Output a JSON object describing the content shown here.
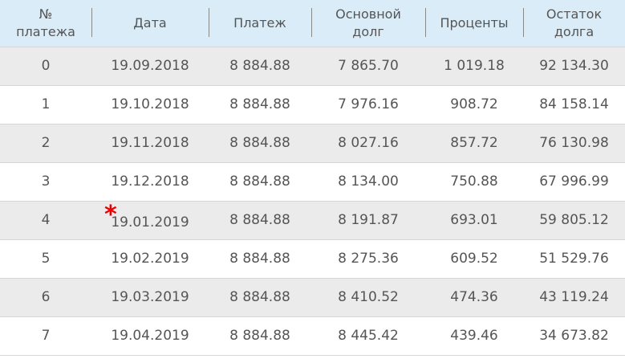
{
  "table": {
    "columns": [
      "№\nплатежа",
      "Дата",
      "Платеж",
      "Основной\nдолг",
      "Проценты",
      "Остаток\nдолга"
    ],
    "marker": {
      "symbol": "*",
      "color": "#ee0000",
      "row_index": 4
    },
    "rows": [
      [
        "0",
        "19.09.2018",
        "8 884.88",
        "7 865.70",
        "1 019.18",
        "92 134.30"
      ],
      [
        "1",
        "19.10.2018",
        "8 884.88",
        "7 976.16",
        "908.72",
        "84 158.14"
      ],
      [
        "2",
        "19.11.2018",
        "8 884.88",
        "8 027.16",
        "857.72",
        "76 130.98"
      ],
      [
        "3",
        "19.12.2018",
        "8 884.88",
        "8 134.00",
        "750.88",
        "67 996.99"
      ],
      [
        "4",
        "19.01.2019",
        "8 884.88",
        "8 191.87",
        "693.01",
        "59 805.12"
      ],
      [
        "5",
        "19.02.2019",
        "8 884.88",
        "8 275.36",
        "609.52",
        "51 529.76"
      ],
      [
        "6",
        "19.03.2019",
        "8 884.88",
        "8 410.52",
        "474.36",
        "43 119.24"
      ],
      [
        "7",
        "19.04.2019",
        "8 884.88",
        "8 445.42",
        "439.46",
        "34 673.82"
      ]
    ]
  },
  "colors": {
    "header_bg": "#d9ecf7",
    "row_odd_bg": "#ebebeb",
    "row_even_bg": "#ffffff",
    "text": "#555555"
  }
}
